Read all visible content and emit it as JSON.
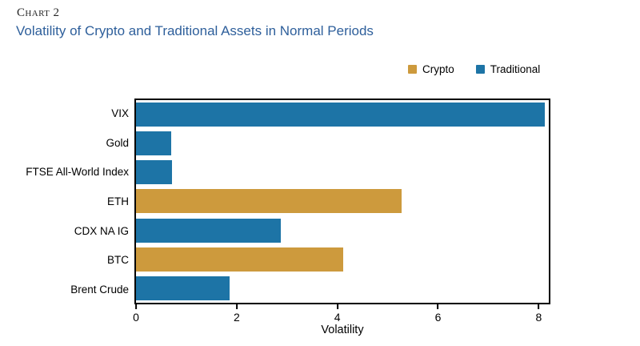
{
  "header": {
    "kicker": "Chart 2",
    "title": "Volatility of Crypto and Traditional Assets in Normal Periods"
  },
  "legend": {
    "items": [
      {
        "label": "Crypto",
        "color": "#cd9a3d"
      },
      {
        "label": "Traditional",
        "color": "#1d74a6"
      }
    ]
  },
  "chart_data": {
    "type": "bar",
    "orientation": "horizontal",
    "title": "Volatility of Crypto and Traditional Assets in Normal Periods",
    "xlabel": "Volatility",
    "ylabel": "",
    "xlim": [
      0,
      8.2
    ],
    "xticks": [
      0,
      2,
      4,
      6,
      8
    ],
    "grid": false,
    "legend_position": "top-right",
    "categories": [
      "VIX",
      "Gold",
      "FTSE All-World Index",
      "ETH",
      "CDX NA IG",
      "BTC",
      "Brent Crude"
    ],
    "values": [
      8.12,
      0.7,
      0.72,
      5.28,
      2.88,
      4.12,
      1.86
    ],
    "series_by_bar": [
      "Traditional",
      "Traditional",
      "Traditional",
      "Crypto",
      "Traditional",
      "Crypto",
      "Traditional"
    ],
    "palette": {
      "Crypto": "#cd9a3d",
      "Traditional": "#1d74a6"
    }
  },
  "colors": {
    "title": "#2e5f9b",
    "kicker": "#262626",
    "axis": "#000000",
    "text": "#000000"
  }
}
